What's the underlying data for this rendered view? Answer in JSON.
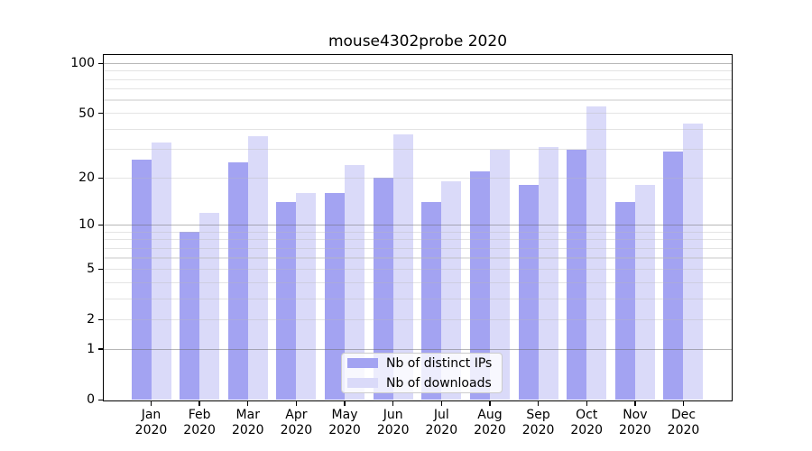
{
  "chart_data": {
    "type": "bar",
    "title": "mouse4302probe 2020",
    "categories": [
      "Jan",
      "Feb",
      "Mar",
      "Apr",
      "May",
      "Jun",
      "Jul",
      "Aug",
      "Sep",
      "Oct",
      "Nov",
      "Dec"
    ],
    "year_label": "2020",
    "series": [
      {
        "name": "Nb of distinct IPs",
        "color": "#a3a3f2",
        "values": [
          26,
          9,
          25,
          14,
          16,
          20,
          14,
          22,
          18,
          30,
          14,
          29
        ]
      },
      {
        "name": "Nb of downloads",
        "color": "#dadaf9",
        "values": [
          33,
          12,
          36,
          16,
          24,
          37,
          19,
          30,
          31,
          55,
          18,
          43
        ]
      }
    ],
    "y_scale": "log1p",
    "ylim": [
      0,
      113
    ],
    "y_tick_values": [
      0,
      1,
      2,
      5,
      10,
      20,
      50,
      100
    ],
    "grid": {
      "major_lines": [
        1,
        10,
        100
      ],
      "minor_lines": [
        2,
        3,
        4,
        5,
        6,
        7,
        8,
        9,
        20,
        30,
        40,
        50,
        60,
        70,
        80,
        90
      ],
      "drawn_over_bars": true
    },
    "legend_position": "bottom-center",
    "background_color": "#ffffff",
    "spine_color": "#000000"
  }
}
